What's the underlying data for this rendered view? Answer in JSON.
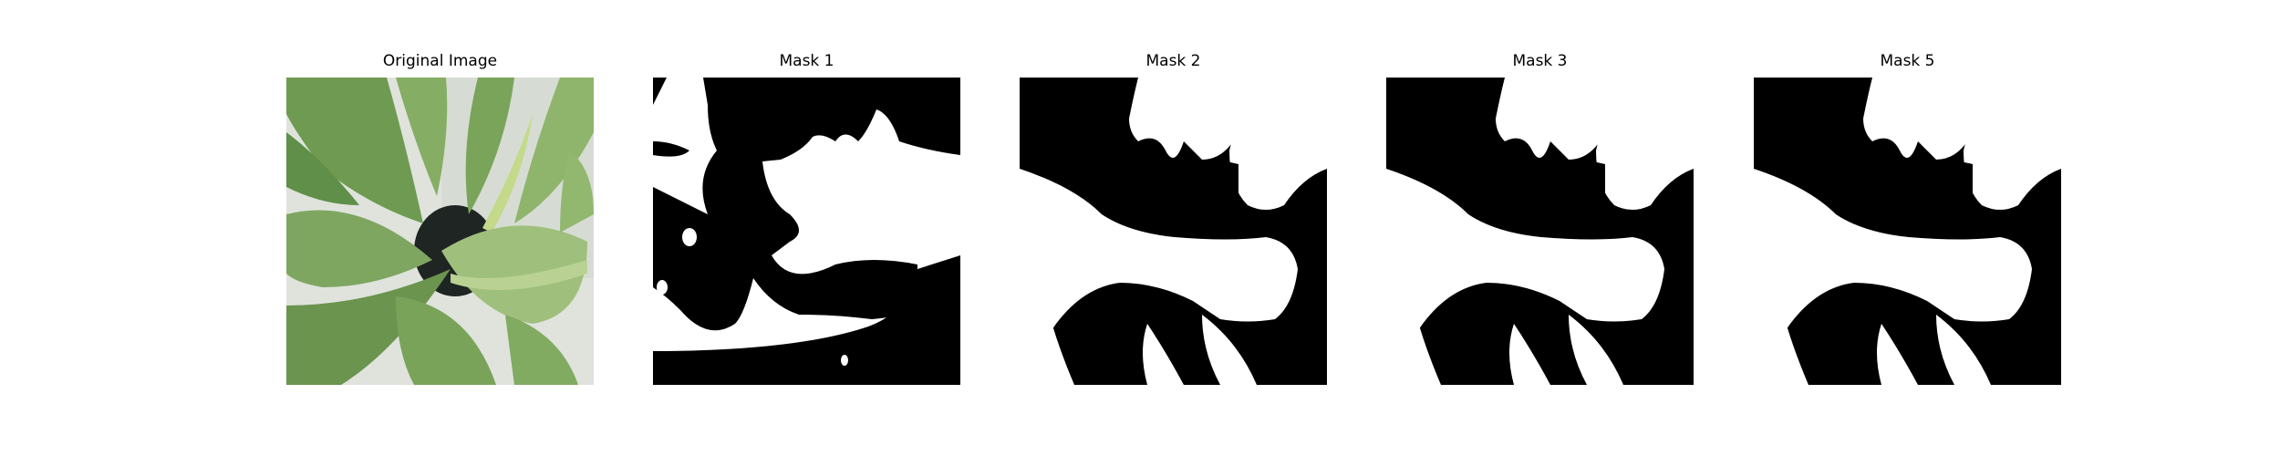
{
  "figure": {
    "panels": [
      {
        "title": "Original Image",
        "kind": "photo"
      },
      {
        "title": "Mask 1",
        "kind": "mask"
      },
      {
        "title": "Mask 2",
        "kind": "mask"
      },
      {
        "title": "Mask 3",
        "kind": "mask"
      },
      {
        "title": "Mask 5",
        "kind": "mask"
      }
    ]
  },
  "colors": {
    "background": "#ffffff",
    "mask_foreground": "#ffffff",
    "mask_background": "#000000",
    "leaf_dark": "#5f8f48",
    "leaf_light": "#9fc07c",
    "pot": "#1e2522",
    "backdrop": "#dfe3dc"
  }
}
